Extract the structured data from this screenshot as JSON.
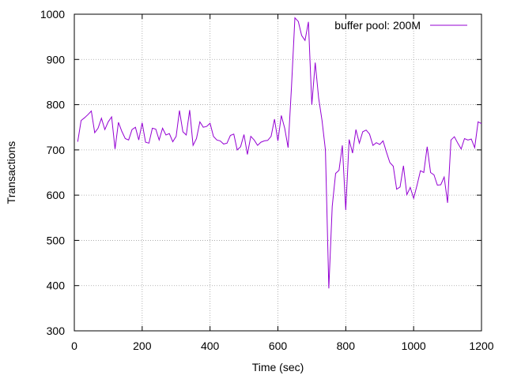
{
  "chart_data": {
    "type": "line",
    "title": "",
    "xlabel": "Time (sec)",
    "ylabel": "Transactions",
    "xlim": [
      0,
      1200
    ],
    "ylim": [
      300,
      1000
    ],
    "x_ticks": [
      0,
      200,
      400,
      600,
      800,
      1000,
      1200
    ],
    "y_ticks": [
      300,
      400,
      500,
      600,
      700,
      800,
      900,
      1000
    ],
    "x_tick_labels": [
      "0",
      "200",
      "400",
      "600",
      "800",
      "1000",
      "1200"
    ],
    "y_tick_labels": [
      "300",
      "400",
      "500",
      "600",
      "700",
      "800",
      "900",
      "1000"
    ],
    "grid": true,
    "legend_position": "top-right",
    "series": [
      {
        "name": "buffer pool: 200M",
        "color": "#9400d3",
        "x": [
          10,
          20,
          30,
          40,
          50,
          60,
          70,
          80,
          90,
          100,
          110,
          120,
          130,
          140,
          150,
          160,
          170,
          180,
          190,
          200,
          210,
          220,
          230,
          240,
          250,
          260,
          270,
          280,
          290,
          300,
          310,
          320,
          330,
          340,
          350,
          360,
          370,
          380,
          390,
          400,
          410,
          420,
          430,
          440,
          450,
          460,
          470,
          480,
          490,
          500,
          510,
          520,
          530,
          540,
          550,
          560,
          570,
          580,
          590,
          600,
          610,
          620,
          630,
          640,
          650,
          660,
          670,
          680,
          690,
          700,
          710,
          720,
          730,
          740,
          750,
          760,
          770,
          780,
          790,
          800,
          810,
          820,
          830,
          840,
          850,
          860,
          870,
          880,
          890,
          900,
          910,
          920,
          930,
          940,
          950,
          960,
          970,
          980,
          990,
          1000,
          1010,
          1020,
          1030,
          1040,
          1050,
          1060,
          1070,
          1080,
          1090,
          1100,
          1110,
          1120,
          1130,
          1140,
          1150,
          1160,
          1170,
          1180,
          1190,
          1200
        ],
        "y": [
          718,
          765,
          771,
          778,
          786,
          738,
          748,
          770,
          745,
          762,
          773,
          702,
          761,
          741,
          725,
          722,
          745,
          750,
          722,
          760,
          717,
          715,
          748,
          746,
          722,
          748,
          733,
          736,
          718,
          730,
          787,
          740,
          733,
          788,
          710,
          725,
          762,
          750,
          752,
          759,
          730,
          722,
          720,
          713,
          715,
          732,
          735,
          700,
          707,
          734,
          690,
          730,
          722,
          710,
          717,
          720,
          721,
          730,
          768,
          720,
          776,
          748,
          705,
          840,
          992,
          984,
          953,
          942,
          983,
          800,
          893,
          815,
          765,
          700,
          394,
          575,
          648,
          655,
          710,
          567,
          723,
          693,
          745,
          715,
          740,
          744,
          735,
          710,
          716,
          712,
          720,
          695,
          672,
          664,
          613,
          618,
          665,
          601,
          617,
          593,
          622,
          654,
          650,
          707,
          650,
          645,
          622,
          623,
          640,
          583,
          722,
          729,
          715,
          702,
          725,
          722,
          724,
          705,
          762,
          758
        ]
      }
    ]
  }
}
